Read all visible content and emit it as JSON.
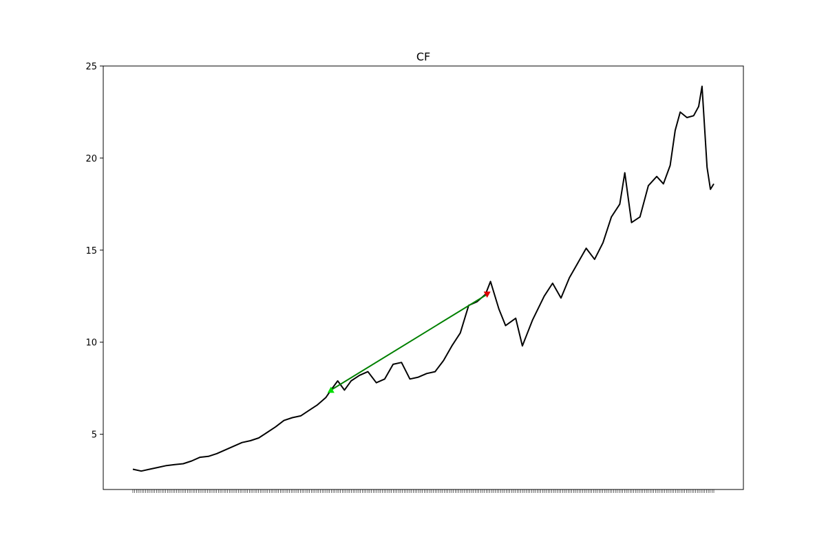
{
  "chart_data": {
    "type": "line",
    "title": "CF",
    "xlabel": "",
    "ylabel": "",
    "ylim": [
      2,
      25
    ],
    "yticks": [
      5,
      10,
      15,
      20,
      25
    ],
    "grid": false,
    "x_tick_count": 320,
    "series": [
      {
        "color": "#000000",
        "points": [
          [
            0,
            3.1
          ],
          [
            5,
            3.0
          ],
          [
            10,
            3.1
          ],
          [
            15,
            3.2
          ],
          [
            20,
            3.3
          ],
          [
            25,
            3.35
          ],
          [
            30,
            3.4
          ],
          [
            35,
            3.55
          ],
          [
            40,
            3.75
          ],
          [
            45,
            3.8
          ],
          [
            50,
            3.95
          ],
          [
            55,
            4.15
          ],
          [
            60,
            4.35
          ],
          [
            65,
            4.55
          ],
          [
            70,
            4.65
          ],
          [
            75,
            4.8
          ],
          [
            80,
            5.1
          ],
          [
            85,
            5.4
          ],
          [
            90,
            5.75
          ],
          [
            95,
            5.9
          ],
          [
            100,
            6.0
          ],
          [
            105,
            6.3
          ],
          [
            110,
            6.6
          ],
          [
            115,
            7.0
          ],
          [
            118,
            7.4
          ],
          [
            122,
            7.9
          ],
          [
            126,
            7.4
          ],
          [
            130,
            7.9
          ],
          [
            135,
            8.2
          ],
          [
            140,
            8.4
          ],
          [
            145,
            7.8
          ],
          [
            150,
            8.0
          ],
          [
            155,
            8.8
          ],
          [
            160,
            8.9
          ],
          [
            165,
            8.0
          ],
          [
            170,
            8.1
          ],
          [
            175,
            8.3
          ],
          [
            180,
            8.4
          ],
          [
            185,
            9.0
          ],
          [
            190,
            9.8
          ],
          [
            195,
            10.5
          ],
          [
            200,
            12.0
          ],
          [
            205,
            12.2
          ],
          [
            210,
            12.6
          ],
          [
            213,
            13.3
          ],
          [
            218,
            11.8
          ],
          [
            222,
            10.9
          ],
          [
            228,
            11.3
          ],
          [
            232,
            9.8
          ],
          [
            238,
            11.2
          ],
          [
            245,
            12.5
          ],
          [
            250,
            13.2
          ],
          [
            255,
            12.4
          ],
          [
            260,
            13.5
          ],
          [
            265,
            14.3
          ],
          [
            270,
            15.1
          ],
          [
            275,
            14.5
          ],
          [
            280,
            15.4
          ],
          [
            285,
            16.8
          ],
          [
            290,
            17.5
          ],
          [
            293,
            19.2
          ],
          [
            297,
            16.5
          ],
          [
            302,
            16.8
          ],
          [
            307,
            18.5
          ],
          [
            312,
            19.0
          ],
          [
            316,
            18.6
          ],
          [
            320,
            19.6
          ],
          [
            323,
            21.5
          ],
          [
            326,
            22.5
          ],
          [
            330,
            22.2
          ],
          [
            334,
            22.3
          ],
          [
            337,
            22.8
          ],
          [
            339,
            23.9
          ],
          [
            342,
            19.5
          ],
          [
            344,
            18.3
          ],
          [
            346,
            18.6
          ]
        ]
      },
      {
        "color": "#008000",
        "points": [
          [
            118,
            7.4
          ],
          [
            211,
            12.6
          ]
        ]
      }
    ],
    "markers": [
      {
        "x": 118,
        "y": 7.4,
        "shape": "triangle-up",
        "color": "#00dd00"
      },
      {
        "x": 211,
        "y": 12.6,
        "shape": "triangle-down",
        "color": "#dd0000"
      }
    ],
    "x_domain": [
      0,
      346
    ]
  }
}
